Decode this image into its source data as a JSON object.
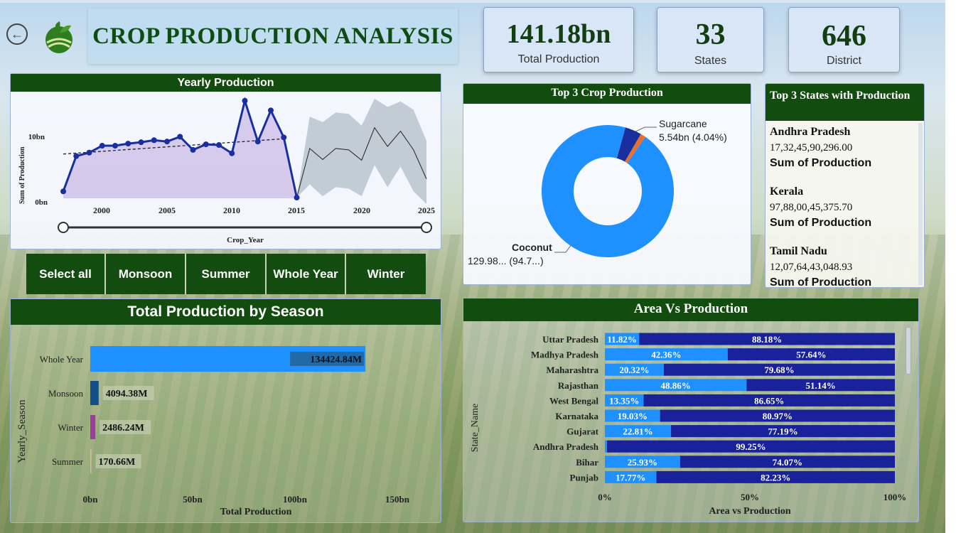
{
  "header": {
    "title": "CROP PRODUCTION ANALYSIS",
    "back_icon": "back-arrow-icon",
    "logo_icon": "crop-field-logo-icon"
  },
  "kpis": {
    "total_production": {
      "value": "141.18bn",
      "label": "Total Production"
    },
    "states": {
      "value": "33",
      "label": "States"
    },
    "district": {
      "value": "646",
      "label": "District"
    }
  },
  "colors": {
    "panel_header": "#124d0f",
    "line_series": "#1a2f9e",
    "forecast_band": "#b8c4cc",
    "bar_whole_year": "#1e90ff",
    "bar_monsoon": "#134d8a",
    "bar_winter": "#9c3c9e",
    "bar_summer": "#e6b0b0",
    "donut_coconut": "#1e90ff",
    "donut_sugarcane": "#1a2f9e",
    "donut_other": "#e8702a",
    "stack_area": "#1e90ff",
    "stack_production": "#1a229b"
  },
  "yearly": {
    "title": "Yearly Production",
    "ylabel": "Sum of Production",
    "xlabel": "Crop_Year",
    "y_ticks": [
      "0bn",
      "10bn"
    ],
    "x_ticks": [
      "2000",
      "2005",
      "2010",
      "2015",
      "2020",
      "2025"
    ]
  },
  "slicers": [
    "Select all",
    "Monsoon",
    "Summer",
    "Whole Year",
    "Winter"
  ],
  "season": {
    "title": "Total Production by Season",
    "ylabel": "Yearly_Season",
    "xlabel": "Total Production",
    "x_ticks": [
      "0bn",
      "50bn",
      "100bn",
      "150bn"
    ]
  },
  "top3crop": {
    "title": "Top 3 Crop Production",
    "sugarcane_label": "Sugarcane",
    "sugarcane_value": "5.54bn (4.04%)",
    "coconut_label": "Coconut",
    "coconut_value": "129.98... (94.7...)"
  },
  "top3states": {
    "title": "Top 3 States with Production",
    "items": [
      {
        "name": "Andhra Pradesh",
        "value": "17,32,45,90,296.00",
        "label": "Sum of Production"
      },
      {
        "name": "Kerala",
        "value": "97,88,00,45,375.70",
        "label": "Sum of Production"
      },
      {
        "name": "Tamil Nadu",
        "value": "12,07,64,43,048.93",
        "label": "Sum of Production"
      }
    ]
  },
  "areavs": {
    "title": "Area Vs Production",
    "ylabel": "State_Name",
    "xlabel": "Area vs Production",
    "x_ticks": [
      "0%",
      "50%",
      "100%"
    ]
  },
  "chart_data": [
    {
      "type": "line",
      "title": "Yearly Production",
      "xlabel": "Crop_Year",
      "ylabel": "Sum of Production",
      "ylim": [
        0,
        15
      ],
      "xlim": [
        1997,
        2025
      ],
      "y_unit": "bn",
      "series": [
        {
          "x": [
            1997,
            1998,
            1999,
            2000,
            2001,
            2002,
            2003,
            2004,
            2005,
            2006,
            2007,
            2008,
            2009,
            2010,
            2011,
            2012,
            2013,
            2014,
            2015
          ],
          "y": [
            1.0,
            6.1,
            6.6,
            7.6,
            7.6,
            7.9,
            8.1,
            8.4,
            8.2,
            8.9,
            7.0,
            7.8,
            7.7,
            6.5,
            14.1,
            8.2,
            12.7,
            8.8,
            0.1
          ]
        }
      ],
      "trend": {
        "x": [
          1997,
          2014
        ],
        "y": [
          6.4,
          8.6
        ]
      },
      "forecast": {
        "x": [
          2015,
          2016,
          2017,
          2018,
          2019,
          2020,
          2021,
          2022,
          2023,
          2024,
          2025
        ],
        "y": [
          0.1,
          7.2,
          5.6,
          7.2,
          7.0,
          5.5,
          10.2,
          7.5,
          9.7,
          7.0,
          2.8
        ],
        "upper": [
          0.1,
          11.8,
          11.0,
          12.4,
          12.2,
          10.5,
          14.4,
          13.2,
          14.0,
          12.8,
          8.3
        ],
        "lower": [
          0.1,
          2.0,
          0.3,
          1.6,
          1.4,
          0.3,
          4.8,
          1.6,
          4.6,
          1.0,
          -2.2
        ]
      }
    },
    {
      "type": "bar",
      "orientation": "horizontal",
      "title": "Total Production by Season",
      "xlabel": "Total Production",
      "ylabel": "Yearly_Season",
      "xlim": [
        0,
        150
      ],
      "x_unit": "bn",
      "categories": [
        "Whole Year",
        "Monsoon",
        "Winter",
        "Summer"
      ],
      "values": [
        134424.84,
        4094.38,
        2486.24,
        170.66
      ],
      "value_labels": [
        "134424.84M",
        "4094.38M",
        "2486.24M",
        "170.66M"
      ]
    },
    {
      "type": "pie",
      "donut": true,
      "title": "Top 3 Crop Production",
      "categories": [
        "Coconut",
        "Sugarcane",
        "Other"
      ],
      "values": [
        94.7,
        4.04,
        1.26
      ]
    },
    {
      "type": "bar",
      "orientation": "horizontal",
      "stacked_percent": true,
      "title": "Area Vs Production",
      "xlabel": "Area vs Production",
      "ylabel": "State_Name",
      "categories": [
        "Uttar Pradesh",
        "Madhya Pradesh",
        "Maharashtra",
        "Rajasthan",
        "West Bengal",
        "Karnataka",
        "Gujarat",
        "Andhra Pradesh",
        "Bihar",
        "Punjab"
      ],
      "series": [
        {
          "values": [
            11.82,
            42.36,
            20.32,
            48.86,
            13.35,
            19.03,
            22.81,
            0.75,
            25.93,
            17.77
          ],
          "labels": [
            "11.82%",
            "42.36%",
            "20.32%",
            "48.86%",
            "13.35%",
            "19.03%",
            "22.81%",
            "",
            "25.93%",
            "17.77%"
          ]
        },
        {
          "values": [
            88.18,
            57.64,
            79.68,
            51.14,
            86.65,
            80.97,
            77.19,
            99.25,
            74.07,
            82.23
          ],
          "labels": [
            "88.18%",
            "57.64%",
            "79.68%",
            "51.14%",
            "86.65%",
            "80.97%",
            "77.19%",
            "99.25%",
            "74.07%",
            "82.23%"
          ]
        }
      ]
    }
  ]
}
